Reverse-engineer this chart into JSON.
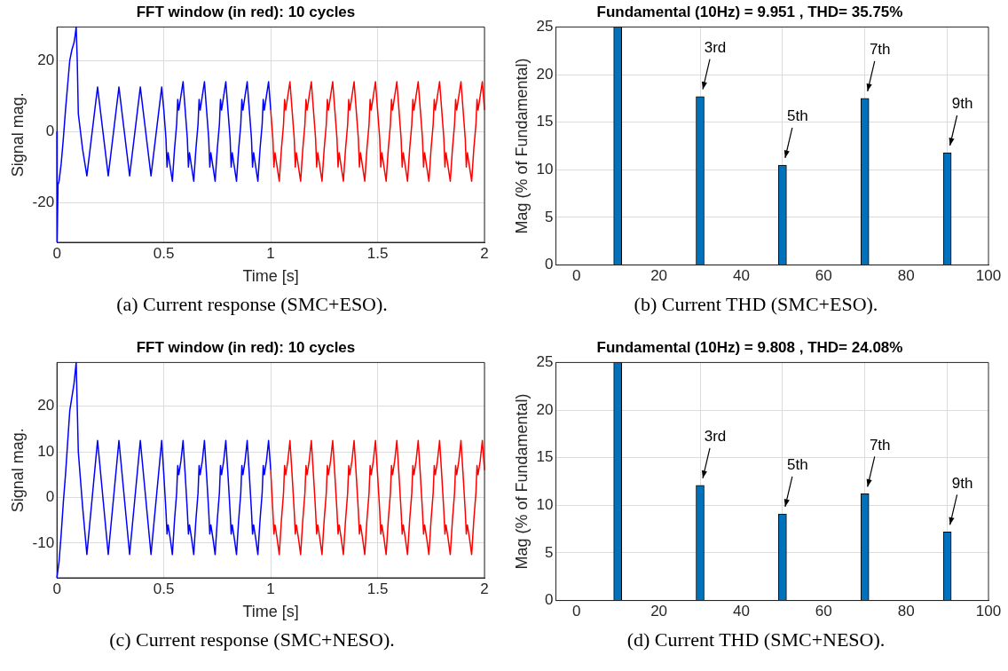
{
  "chart_data": [
    {
      "type": "line",
      "title": "FFT window (in red): 10 cycles",
      "xlabel": "Time [s]",
      "ylabel": "Signal mag.",
      "xlim": [
        0,
        2
      ],
      "xticks": [
        0,
        0.5,
        1,
        1.5,
        2
      ],
      "ylim": [
        -31.2,
        29.4
      ],
      "yticks": [
        -20,
        0,
        20
      ],
      "grid": true,
      "marker": "none",
      "annotations": [
        "(a) Current response (SMC+ESO)."
      ],
      "series": [
        {
          "color": "#0000ff",
          "x": [
            0,
            0.001,
            0.005,
            0.01,
            0.02,
            0.03,
            0.04,
            0.05,
            0.06,
            0.07,
            0.08,
            0.085,
            0.09,
            0.095,
            0.1,
            0.12,
            0.14,
            0.19,
            0.24,
            0.29,
            0.34,
            0.39,
            0.44,
            0.49,
            0.5,
            0.51,
            0.515,
            0.52,
            0.53,
            0.54,
            0.55,
            0.56,
            0.565,
            0.57,
            0.58,
            0.59,
            0.6,
            0.61,
            0.615,
            0.62,
            0.63,
            0.64,
            0.65,
            0.66,
            0.665,
            0.67,
            0.68,
            0.69,
            0.7,
            0.71,
            0.715,
            0.72,
            0.73,
            0.74,
            0.75,
            0.76,
            0.765,
            0.77,
            0.78,
            0.79,
            0.8,
            0.81,
            0.815,
            0.82,
            0.83,
            0.84,
            0.85,
            0.86,
            0.865,
            0.87,
            0.88,
            0.89,
            0.9,
            0.91,
            0.915,
            0.92,
            0.93,
            0.94,
            0.95,
            0.96,
            0.965,
            0.97,
            0.98,
            0.99,
            1.0
          ],
          "values": [
            0,
            -31,
            -15,
            -14,
            -9,
            -2,
            6,
            13,
            20,
            23,
            25,
            27,
            29.4,
            20,
            5,
            -5,
            -12.5,
            12.5,
            -12.5,
            12.5,
            -12.5,
            12.5,
            -12.5,
            12.5,
            6,
            -2,
            -10,
            -6,
            -10,
            -14,
            -5,
            2,
            9,
            6,
            10,
            14,
            6,
            -2,
            -10,
            -6,
            -10,
            -14,
            -5,
            2,
            9,
            6,
            10,
            14,
            6,
            -2,
            -10,
            -6,
            -10,
            -14,
            -5,
            2,
            9,
            6,
            10,
            14,
            6,
            -2,
            -10,
            -6,
            -10,
            -14,
            -5,
            2,
            9,
            6,
            10,
            14,
            6,
            -2,
            -10,
            -6,
            -10,
            -14,
            -5,
            2,
            9,
            6,
            10,
            14,
            6
          ]
        },
        {
          "color": "#ff0000",
          "x": [
            1.0,
            1.01,
            1.015,
            1.02,
            1.03,
            1.04,
            1.05,
            1.06,
            1.065,
            1.07,
            1.08,
            1.09,
            1.1,
            1.11,
            1.115,
            1.12,
            1.13,
            1.14,
            1.15,
            1.16,
            1.165,
            1.17,
            1.18,
            1.19,
            1.2,
            1.21,
            1.215,
            1.22,
            1.23,
            1.24,
            1.25,
            1.26,
            1.265,
            1.27,
            1.28,
            1.29,
            1.3,
            1.31,
            1.315,
            1.32,
            1.33,
            1.34,
            1.35,
            1.36,
            1.365,
            1.37,
            1.38,
            1.39,
            1.4,
            1.41,
            1.415,
            1.42,
            1.43,
            1.44,
            1.45,
            1.46,
            1.465,
            1.47,
            1.48,
            1.49,
            1.5,
            1.51,
            1.515,
            1.52,
            1.53,
            1.54,
            1.55,
            1.56,
            1.565,
            1.57,
            1.58,
            1.59,
            1.6,
            1.61,
            1.615,
            1.62,
            1.63,
            1.64,
            1.65,
            1.66,
            1.665,
            1.67,
            1.68,
            1.69,
            1.7,
            1.71,
            1.715,
            1.72,
            1.73,
            1.74,
            1.75,
            1.76,
            1.765,
            1.77,
            1.78,
            1.79,
            1.8,
            1.81,
            1.815,
            1.82,
            1.83,
            1.84,
            1.85,
            1.86,
            1.865,
            1.87,
            1.88,
            1.89,
            1.9,
            1.91,
            1.915,
            1.92,
            1.93,
            1.94,
            1.95,
            1.96,
            1.965,
            1.97,
            1.98,
            1.99,
            2.0
          ],
          "values": [
            6,
            -2,
            -10,
            -6,
            -10,
            -14,
            -5,
            2,
            9,
            6,
            10,
            14,
            6,
            -2,
            -10,
            -6,
            -10,
            -14,
            -5,
            2,
            9,
            6,
            10,
            14,
            6,
            -2,
            -10,
            -6,
            -10,
            -14,
            -5,
            2,
            9,
            6,
            10,
            14,
            6,
            -2,
            -10,
            -6,
            -10,
            -14,
            -5,
            2,
            9,
            6,
            10,
            14,
            6,
            -2,
            -10,
            -6,
            -10,
            -14,
            -5,
            2,
            9,
            6,
            10,
            14,
            6,
            -2,
            -10,
            -6,
            -10,
            -14,
            -5,
            2,
            9,
            6,
            10,
            14,
            6,
            -2,
            -10,
            -6,
            -10,
            -14,
            -5,
            2,
            9,
            6,
            10,
            14,
            6,
            -2,
            -10,
            -6,
            -10,
            -14,
            -5,
            2,
            9,
            6,
            10,
            14,
            6,
            -2,
            -10,
            -6,
            -10,
            -14,
            -5,
            2,
            9,
            6,
            10,
            14,
            6,
            -2,
            -10,
            -6,
            -10,
            -14,
            -5,
            2,
            9,
            6,
            10,
            14,
            6
          ]
        }
      ]
    },
    {
      "type": "bar",
      "title": "Fundamental (10Hz) = 9.951 , THD= 35.75%",
      "ylabel": "Mag (% of Fundamental)",
      "xlim": [
        -5,
        100
      ],
      "xticks": [
        0,
        20,
        40,
        60,
        80,
        100
      ],
      "ylim": [
        0,
        25
      ],
      "yticks": [
        0,
        5,
        10,
        15,
        20,
        25
      ],
      "grid": true,
      "color": "#0072bd",
      "x": [
        10,
        30,
        50,
        70,
        90
      ],
      "values": [
        25,
        17.7,
        10.5,
        17.5,
        11.8
      ],
      "annotations": [
        {
          "text": "3rd",
          "x": 30,
          "y": 17.7
        },
        {
          "text": "5th",
          "x": 50,
          "y": 10.5
        },
        {
          "text": "7th",
          "x": 70,
          "y": 17.5
        },
        {
          "text": "9th",
          "x": 90,
          "y": 11.8
        },
        "(b) Current THD (SMC+ESO)."
      ]
    },
    {
      "type": "line",
      "title": "FFT window (in red): 10 cycles",
      "xlabel": "Time [s]",
      "ylabel": "Signal mag.",
      "xlim": [
        0,
        2
      ],
      "xticks": [
        0,
        0.5,
        1,
        1.5,
        2
      ],
      "ylim": [
        -17.6,
        29.6
      ],
      "yticks": [
        -10,
        0,
        10,
        20
      ],
      "grid": true,
      "marker": "none",
      "annotations": [
        "(c) Current response (SMC+NESO)."
      ],
      "series": [
        {
          "color": "#0000ff",
          "x": [
            0,
            0.01,
            0.02,
            0.03,
            0.04,
            0.05,
            0.06,
            0.07,
            0.08,
            0.09,
            0.1,
            0.12,
            0.14,
            0.19,
            0.24,
            0.29,
            0.34,
            0.39,
            0.44,
            0.49,
            0.5,
            0.51,
            0.515,
            0.52,
            0.53,
            0.54,
            0.55,
            0.56,
            0.565,
            0.57,
            0.58,
            0.59,
            0.6,
            0.61,
            0.615,
            0.62,
            0.63,
            0.64,
            0.65,
            0.66,
            0.665,
            0.67,
            0.68,
            0.69,
            0.7,
            0.71,
            0.715,
            0.72,
            0.73,
            0.74,
            0.75,
            0.76,
            0.765,
            0.77,
            0.78,
            0.79,
            0.8,
            0.81,
            0.815,
            0.82,
            0.83,
            0.84,
            0.85,
            0.86,
            0.865,
            0.87,
            0.88,
            0.89,
            0.9,
            0.91,
            0.915,
            0.92,
            0.93,
            0.94,
            0.95,
            0.96,
            0.965,
            0.97,
            0.98,
            0.99,
            1.0
          ],
          "values": [
            -17.6,
            -14,
            -8,
            -1,
            5,
            12,
            19,
            22,
            25,
            29.6,
            10,
            -2,
            -12.5,
            12.5,
            -12.5,
            12.5,
            -12.5,
            12.5,
            -12.5,
            12.5,
            5,
            -3,
            -8,
            -6,
            -9,
            -12.5,
            -5,
            1,
            7,
            5,
            8,
            12.5,
            5,
            -3,
            -8,
            -6,
            -9,
            -12.5,
            -5,
            1,
            7,
            5,
            8,
            12.5,
            5,
            -3,
            -8,
            -6,
            -9,
            -12.5,
            -5,
            1,
            7,
            5,
            8,
            12.5,
            5,
            -3,
            -8,
            -6,
            -9,
            -12.5,
            -5,
            1,
            7,
            5,
            8,
            12.5,
            5,
            -3,
            -8,
            -6,
            -9,
            -12.5,
            -5,
            1,
            7,
            5,
            8,
            12.5,
            6
          ]
        },
        {
          "color": "#ff0000",
          "x": [
            1.0,
            1.01,
            1.015,
            1.02,
            1.03,
            1.04,
            1.05,
            1.06,
            1.065,
            1.07,
            1.08,
            1.09,
            1.1,
            1.11,
            1.115,
            1.12,
            1.13,
            1.14,
            1.15,
            1.16,
            1.165,
            1.17,
            1.18,
            1.19,
            1.2,
            1.21,
            1.215,
            1.22,
            1.23,
            1.24,
            1.25,
            1.26,
            1.265,
            1.27,
            1.28,
            1.29,
            1.3,
            1.31,
            1.315,
            1.32,
            1.33,
            1.34,
            1.35,
            1.36,
            1.365,
            1.37,
            1.38,
            1.39,
            1.4,
            1.41,
            1.415,
            1.42,
            1.43,
            1.44,
            1.45,
            1.46,
            1.465,
            1.47,
            1.48,
            1.49,
            1.5,
            1.51,
            1.515,
            1.52,
            1.53,
            1.54,
            1.55,
            1.56,
            1.565,
            1.57,
            1.58,
            1.59,
            1.6,
            1.61,
            1.615,
            1.62,
            1.63,
            1.64,
            1.65,
            1.66,
            1.665,
            1.67,
            1.68,
            1.69,
            1.7,
            1.71,
            1.715,
            1.72,
            1.73,
            1.74,
            1.75,
            1.76,
            1.765,
            1.77,
            1.78,
            1.79,
            1.8,
            1.81,
            1.815,
            1.82,
            1.83,
            1.84,
            1.85,
            1.86,
            1.865,
            1.87,
            1.88,
            1.89,
            1.9,
            1.91,
            1.915,
            1.92,
            1.93,
            1.94,
            1.95,
            1.96,
            1.965,
            1.97,
            1.98,
            1.99,
            2.0
          ],
          "values": [
            6,
            -3,
            -8,
            -6,
            -9,
            -12.5,
            -5,
            1,
            7,
            5,
            8,
            12.5,
            5,
            -3,
            -8,
            -6,
            -9,
            -12.5,
            -5,
            1,
            7,
            5,
            8,
            12.5,
            5,
            -3,
            -8,
            -6,
            -9,
            -12.5,
            -5,
            1,
            7,
            5,
            8,
            12.5,
            5,
            -3,
            -8,
            -6,
            -9,
            -12.5,
            -5,
            1,
            7,
            5,
            8,
            12.5,
            5,
            -3,
            -8,
            -6,
            -9,
            -12.5,
            -5,
            1,
            7,
            5,
            8,
            12.5,
            5,
            -3,
            -8,
            -6,
            -9,
            -12.5,
            -5,
            1,
            7,
            5,
            8,
            12.5,
            5,
            -3,
            -8,
            -6,
            -9,
            -12.5,
            -5,
            1,
            7,
            5,
            8,
            12.5,
            5,
            -3,
            -8,
            -6,
            -9,
            -12.5,
            -5,
            1,
            7,
            5,
            8,
            12.5,
            5,
            -3,
            -8,
            -6,
            -9,
            -12.5,
            -5,
            1,
            7,
            5,
            8,
            12.5,
            5,
            -3,
            -8,
            -6,
            -9,
            -12.5,
            -5,
            1,
            7,
            5,
            8,
            12.5,
            6
          ]
        }
      ]
    },
    {
      "type": "bar",
      "title": "Fundamental (10Hz) = 9.808 , THD= 24.08%",
      "ylabel": "Mag (% of Fundamental)",
      "xlim": [
        -5,
        100
      ],
      "xticks": [
        0,
        20,
        40,
        60,
        80,
        100
      ],
      "ylim": [
        0,
        25
      ],
      "yticks": [
        0,
        5,
        10,
        15,
        20,
        25
      ],
      "grid": true,
      "color": "#0072bd",
      "x": [
        10,
        30,
        50,
        70,
        90
      ],
      "values": [
        25,
        12.1,
        9.1,
        11.2,
        7.2
      ],
      "annotations": [
        {
          "text": "3rd",
          "x": 30,
          "y": 12.1
        },
        {
          "text": "5th",
          "x": 50,
          "y": 9.1
        },
        {
          "text": "7th",
          "x": 70,
          "y": 11.2
        },
        {
          "text": "9th",
          "x": 90,
          "y": 7.2
        },
        "(d) Current THD (SMC+NESO)."
      ]
    }
  ]
}
